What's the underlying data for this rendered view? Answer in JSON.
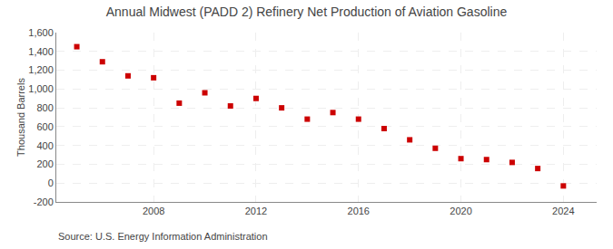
{
  "chart_data": {
    "type": "scatter",
    "title": "Annual Midwest (PADD 2) Refinery Net Production of Aviation Gasoline",
    "ylabel": "Thousand Barrels",
    "annotations": [
      "Source: U.S. Energy Information Administration"
    ],
    "x": [
      2005,
      2006,
      2007,
      2008,
      2009,
      2010,
      2011,
      2012,
      2013,
      2014,
      2015,
      2016,
      2017,
      2018,
      2019,
      2020,
      2021,
      2022,
      2023,
      2024
    ],
    "values": [
      1450,
      1290,
      1140,
      1120,
      850,
      960,
      820,
      900,
      800,
      680,
      750,
      680,
      580,
      460,
      370,
      260,
      250,
      220,
      155,
      -30
    ],
    "color": "#cc0000",
    "marker": "square",
    "ylim": [
      -200,
      1600
    ],
    "yticks": [
      -200,
      0,
      200,
      400,
      600,
      800,
      {
        "value": 1000,
        "label": "1,000"
      },
      {
        "value": 1200,
        "label": "1,200"
      },
      {
        "value": 1400,
        "label": "1,400"
      },
      {
        "value": 1600,
        "label": "1,600"
      }
    ],
    "xlim": [
      2004.2,
      2025.3
    ],
    "xticks": [
      2008,
      2012,
      2016,
      2020,
      2024
    ],
    "grid": true
  }
}
